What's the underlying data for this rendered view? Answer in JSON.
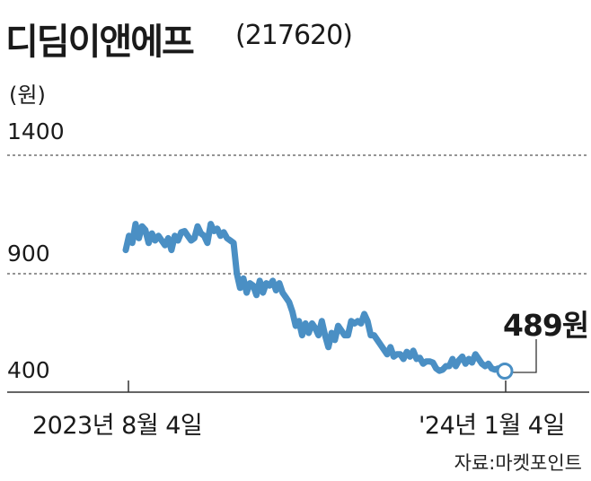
{
  "chart_data": {
    "type": "line",
    "title": "디딤이앤에프",
    "subtitle": "(217620)",
    "ylabel": "(원)",
    "ylim": [
      400,
      1400
    ],
    "yticks": [
      1400,
      900,
      400
    ],
    "grid": "dashed horizontal",
    "x_labels": [
      "2023년 8월 4일",
      "'24년 1월 4일"
    ],
    "last_value_label": "489원",
    "source": "자료:마켓포인트",
    "line_color": "#4a8fc4",
    "series": [
      {
        "values": [
          1000,
          1060,
          1030,
          1110,
          1050,
          1100,
          1085,
          1030,
          1070,
          1040,
          1060,
          1040,
          1020,
          1050,
          1000,
          1060,
          1040,
          1075,
          1080,
          1060,
          1040,
          1050,
          1100,
          1070,
          1060,
          1030,
          1110,
          1080,
          1090,
          1060,
          1075,
          1050,
          1040,
          1030,
          900,
          840,
          880,
          820,
          860,
          850,
          810,
          870,
          820,
          860,
          850,
          870,
          830,
          860,
          820,
          800,
          780,
          740,
          680,
          700,
          640,
          690,
          650,
          690,
          670,
          640,
          700,
          640,
          590,
          650,
          620,
          680,
          660,
          640,
          640,
          700,
          690,
          700,
          690,
          730,
          700,
          640,
          640,
          620,
          600,
          580,
          560,
          590,
          550,
          560,
          560,
          540,
          570,
          550,
          575,
          540,
          545,
          520,
          530,
          530,
          525,
          500,
          490,
          495,
          510,
          510,
          540,
          510,
          535,
          550,
          520,
          540,
          525,
          560,
          540,
          520,
          510,
          520,
          500,
          495,
          500,
          490,
          489
        ]
      }
    ]
  }
}
